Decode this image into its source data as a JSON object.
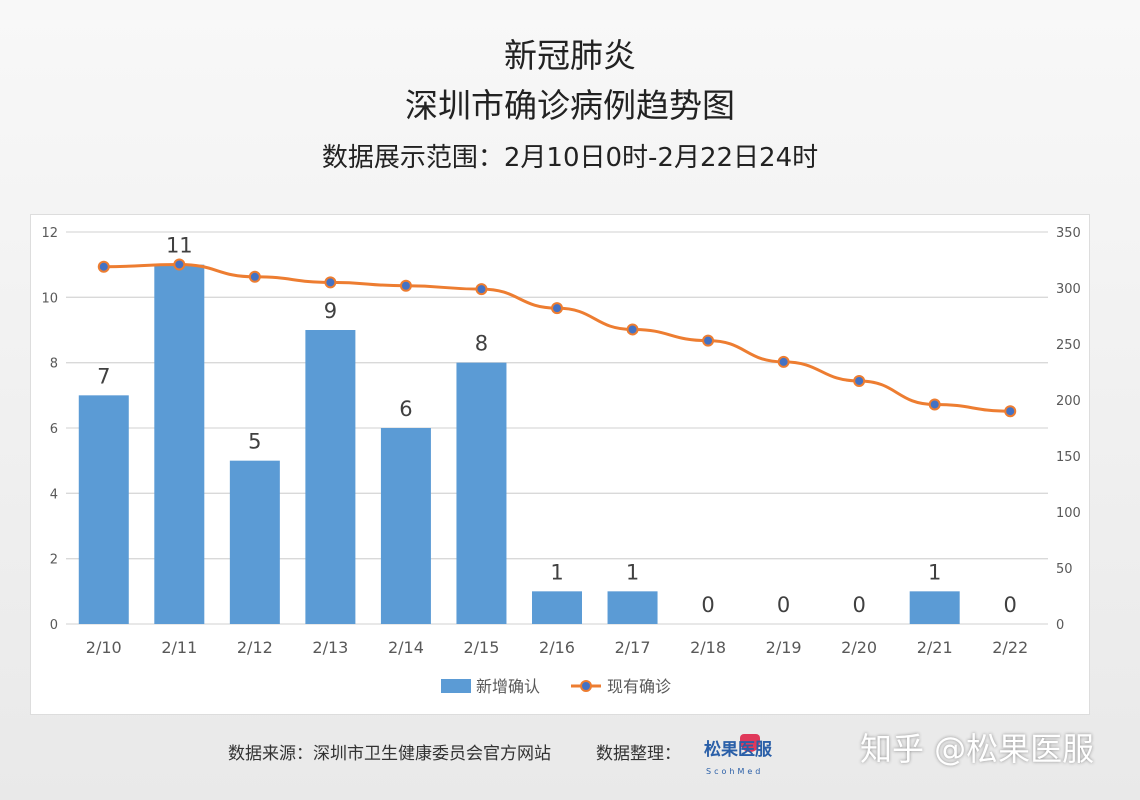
{
  "header": {
    "title_line1": "新冠肺炎",
    "title_line2": "深圳市确诊病例趋势图",
    "subtitle": "数据展示范围：2月10日0时-2月22日24时"
  },
  "chart_data": {
    "type": "bar+line",
    "categories": [
      "2/10",
      "2/11",
      "2/12",
      "2/13",
      "2/14",
      "2/15",
      "2/16",
      "2/17",
      "2/18",
      "2/19",
      "2/20",
      "2/21",
      "2/22"
    ],
    "series": [
      {
        "name": "新增确认",
        "type": "bar",
        "axis": "left",
        "color": "#5b9bd5",
        "values": [
          7,
          11,
          5,
          9,
          6,
          8,
          1,
          1,
          0,
          0,
          0,
          1,
          0
        ],
        "data_labels": true
      },
      {
        "name": "现有确诊",
        "type": "line",
        "axis": "right",
        "color": "#ed7d31",
        "marker_color": "#4472c4",
        "values": [
          319,
          321,
          310,
          305,
          302,
          299,
          282,
          263,
          253,
          234,
          217,
          196,
          190
        ]
      }
    ],
    "y_left": {
      "ylim": [
        0,
        12
      ],
      "ticks": [
        0,
        2,
        4,
        6,
        8,
        10,
        12
      ]
    },
    "y_right": {
      "ylim": [
        0,
        350
      ],
      "ticks": [
        0,
        50,
        100,
        150,
        200,
        250,
        300,
        350
      ]
    },
    "grid": true,
    "legend": "bottom"
  },
  "footer": {
    "source": "数据来源：深圳市卫生健康委员会官方网站",
    "organizer": "数据整理：",
    "logo_text": "松果医服",
    "logo_sub": "ScohMed",
    "watermark": "知乎 @松果医服"
  }
}
